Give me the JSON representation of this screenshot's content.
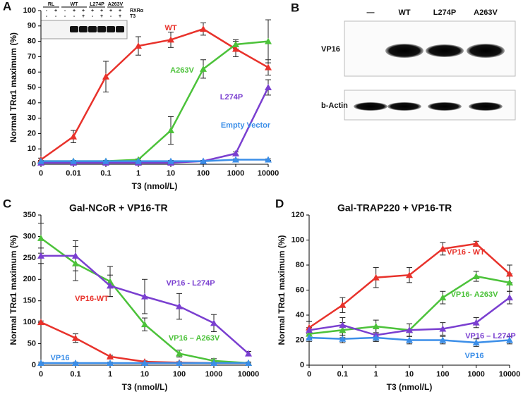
{
  "chart_data": [
    {
      "type": "line",
      "panel": "A",
      "xlabel": "T3 (nmol/L)",
      "ylabel": "Normal TRα1 maximum (%)",
      "categories": [
        "0",
        "0.01",
        "0.1",
        "1",
        "10",
        "100",
        "1000",
        "10000"
      ],
      "ylim": [
        0,
        100
      ],
      "yticks": [
        0,
        10,
        20,
        30,
        40,
        50,
        60,
        70,
        80,
        90,
        100
      ],
      "marker": "triangle",
      "series": [
        {
          "name": "WT",
          "color": "#e8322b",
          "values": [
            3,
            18,
            57,
            77,
            81,
            88,
            75,
            63
          ],
          "errors": [
            1,
            4,
            10,
            6,
            5,
            4,
            5,
            5
          ]
        },
        {
          "name": "A263V",
          "color": "#4cc23a",
          "values": [
            2,
            2,
            2,
            3,
            22,
            62,
            78,
            80
          ],
          "errors": [
            0.5,
            0.5,
            0.5,
            0.5,
            9,
            6,
            3,
            14
          ]
        },
        {
          "name": "L274P",
          "color": "#7a3fd0",
          "values": [
            1,
            1,
            1,
            1,
            1,
            2,
            7,
            50
          ],
          "errors": [
            0.5,
            0.5,
            0.5,
            0.5,
            0.5,
            0.5,
            1,
            5
          ]
        },
        {
          "name": "Empty Vector",
          "color": "#3b8ee8",
          "values": [
            2,
            2,
            2,
            2,
            2,
            2,
            3,
            3
          ],
          "errors": [
            0.5,
            0.5,
            0.5,
            0.5,
            0.5,
            0.5,
            0.5,
            0.5
          ]
        }
      ]
    },
    {
      "type": "line",
      "panel": "C",
      "title": "Gal-NCoR + VP16-TR",
      "xlabel": "T3 (nmol/L)",
      "ylabel": "Normal TRα1 maximum (%)",
      "categories": [
        "0",
        "0.1",
        "1",
        "10",
        "100",
        "1000",
        "10000"
      ],
      "ylim": [
        0,
        350
      ],
      "yticks": [
        0,
        50,
        100,
        150,
        200,
        250,
        300,
        350
      ],
      "marker": "triangle",
      "series": [
        {
          "name": "VP16-WT",
          "color": "#e8322b",
          "values": [
            100,
            63,
            20,
            8,
            6,
            5,
            5
          ],
          "errors": [
            3,
            10,
            3,
            2,
            2,
            2,
            2
          ]
        },
        {
          "name": "VP16 – A263V",
          "color": "#4cc23a",
          "values": [
            296,
            237,
            195,
            95,
            27,
            10,
            5
          ],
          "errors": [
            35,
            40,
            35,
            15,
            8,
            5,
            2
          ]
        },
        {
          "name": "VP16 - L274P",
          "color": "#7a3fd0",
          "values": [
            255,
            255,
            185,
            160,
            137,
            98,
            27
          ],
          "errors": [
            18,
            35,
            25,
            40,
            30,
            20,
            5
          ]
        },
        {
          "name": "VP16",
          "color": "#3b8ee8",
          "values": [
            5,
            5,
            5,
            5,
            5,
            5,
            5
          ],
          "errors": [
            2,
            2,
            2,
            2,
            2,
            2,
            2
          ]
        }
      ]
    },
    {
      "type": "line",
      "panel": "D",
      "title": "Gal-TRAP220 + VP16-TR",
      "xlabel": "T3 (nmol/L)",
      "ylabel": "Normal TRα1 maximum (%)",
      "categories": [
        "0",
        "0.1",
        "1",
        "10",
        "100",
        "1000",
        "10000"
      ],
      "ylim": [
        0,
        120
      ],
      "yticks": [
        0,
        20,
        40,
        60,
        80,
        100,
        120
      ],
      "marker": "triangle",
      "series": [
        {
          "name": "VP16 - WT",
          "color": "#e8322b",
          "values": [
            30,
            48,
            70,
            72,
            93,
            97,
            73
          ],
          "errors": [
            5,
            6,
            8,
            6,
            5,
            2,
            7
          ]
        },
        {
          "name": "VP16- A263V",
          "color": "#4cc23a",
          "values": [
            25,
            28,
            31,
            28,
            54,
            71,
            66
          ],
          "errors": [
            5,
            6,
            5,
            5,
            5,
            4,
            7
          ]
        },
        {
          "name": "VP16 – L274P",
          "color": "#7a3fd0",
          "values": [
            28,
            32,
            24,
            28,
            29,
            34,
            54
          ],
          "errors": [
            7,
            6,
            5,
            5,
            5,
            4,
            5
          ]
        },
        {
          "name": "VP16",
          "color": "#3b8ee8",
          "values": [
            22,
            21,
            22,
            20,
            20,
            18,
            20
          ],
          "errors": [
            3,
            3,
            3,
            3,
            3,
            3,
            3
          ]
        }
      ]
    }
  ],
  "inset_blot": {
    "groups": [
      "RL",
      "WT",
      "L274P",
      "A263V"
    ],
    "rows": [
      "RXRα",
      "T3"
    ],
    "signs": [
      [
        "-",
        "+",
        "-",
        "+",
        "+",
        "+",
        "+",
        "+",
        "+"
      ],
      [
        "-",
        "-",
        "-",
        "-",
        "+",
        "-",
        "+",
        "-",
        "+"
      ]
    ]
  },
  "blot": {
    "panel": "B",
    "lanes": [
      "—",
      "WT",
      "L274P",
      "A263V"
    ],
    "rows": [
      "VP16",
      "b-Actin"
    ]
  }
}
